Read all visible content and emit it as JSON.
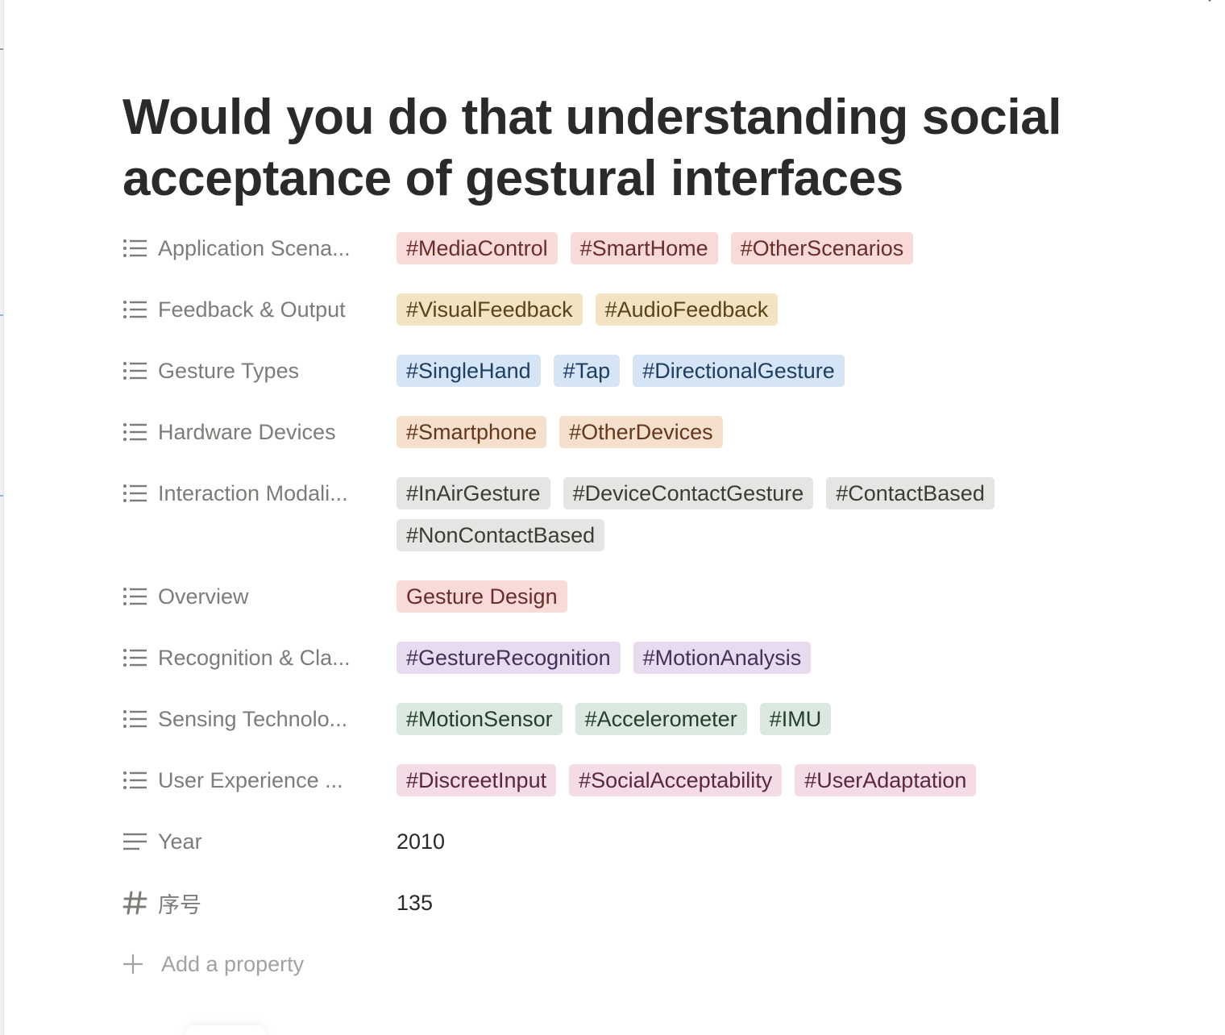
{
  "page": {
    "title": "Would you do that understanding social acceptance of gestural interfaces"
  },
  "colors": {
    "red": "#f8dad8",
    "yellow": "#f2e4c3",
    "blue": "#d5e5f6",
    "orange": "#f5dfcd",
    "gray": "#e6e5e3",
    "purple": "#e7dcef",
    "green": "#dbe8df",
    "pink": "#f4dce6"
  },
  "properties": [
    {
      "label": "Application Scena...",
      "icon": "list-icon",
      "tags": [
        "#MediaControl",
        "#SmartHome",
        "#OtherScenarios"
      ]
    },
    {
      "label": "Feedback & Output",
      "icon": "list-icon",
      "tags": [
        "#VisualFeedback",
        "#AudioFeedback"
      ]
    },
    {
      "label": "Gesture Types",
      "icon": "list-icon",
      "tags": [
        "#SingleHand",
        "#Tap",
        "#DirectionalGesture"
      ]
    },
    {
      "label": "Hardware Devices",
      "icon": "list-icon",
      "tags": [
        "#Smartphone",
        "#OtherDevices"
      ]
    },
    {
      "label": "Interaction Modali...",
      "icon": "list-icon",
      "tags": [
        "#InAirGesture",
        "#DeviceContactGesture",
        "#ContactBased",
        "#NonContactBased"
      ]
    },
    {
      "label": "Overview",
      "icon": "list-icon",
      "tags": [
        "Gesture Design"
      ]
    },
    {
      "label": "Recognition & Cla...",
      "icon": "list-icon",
      "tags": [
        "#GestureRecognition",
        "#MotionAnalysis"
      ]
    },
    {
      "label": "Sensing Technolo...",
      "icon": "list-icon",
      "tags": [
        "#MotionSensor",
        "#Accelerometer",
        "#IMU"
      ]
    },
    {
      "label": "User Experience ...",
      "icon": "list-icon",
      "tags": [
        "#DiscreetInput",
        "#SocialAcceptability",
        "#UserAdaptation"
      ]
    },
    {
      "label": "Year",
      "icon": "text-lines-icon",
      "value": "2010"
    },
    {
      "label": "序号",
      "icon": "number-icon",
      "value": "135"
    }
  ],
  "add_property": {
    "label": "Add a property",
    "icon": "plus-icon"
  }
}
